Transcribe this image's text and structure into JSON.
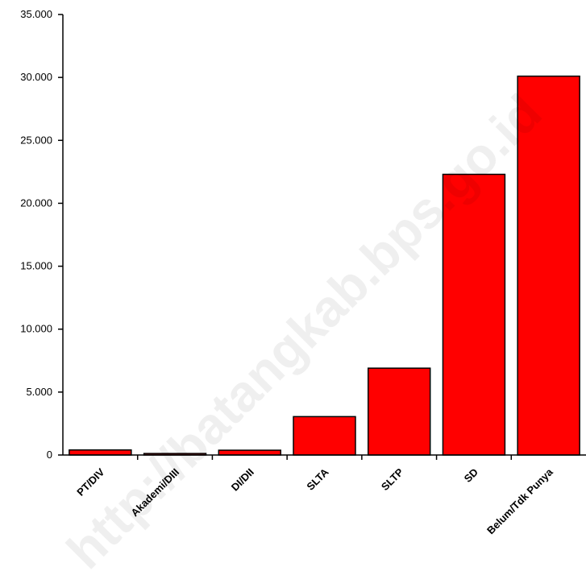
{
  "chart_data": {
    "type": "bar",
    "categories": [
      "PT/DIV",
      "Akademi/DIII",
      "DI/DII",
      "SLTA",
      "SLTP",
      "SD",
      "Belum/Tdk Punya"
    ],
    "values": [
      400,
      120,
      380,
      3050,
      6900,
      22300,
      30100
    ],
    "ylim": [
      0,
      35000
    ],
    "yticks": [
      0,
      5000,
      10000,
      15000,
      20000,
      25000,
      30000,
      35000
    ],
    "ytick_labels": [
      "0",
      "5.000",
      "10.000",
      "15.000",
      "20.000",
      "25.000",
      "30.000",
      "35.000"
    ],
    "bar_color": "#ff0000",
    "bar_edge_color": "#000000",
    "grid": false,
    "legend": "none"
  },
  "watermark": "http://batangkab.bps.go.id"
}
